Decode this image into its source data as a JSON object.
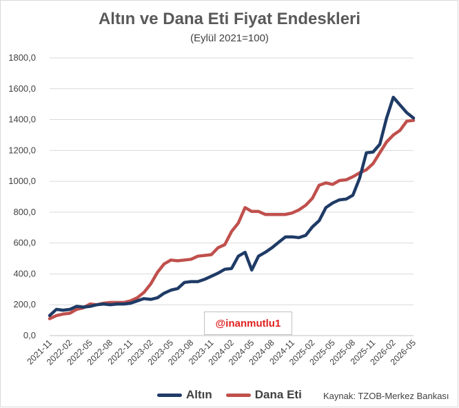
{
  "chart_data": {
    "type": "line",
    "title": "Altın ve Dana Eti Fiyat Endeskleri",
    "subtitle": "(Eylül 2021=100)",
    "ylim": [
      0,
      1800
    ],
    "yticks": [
      "0,0",
      "200,0",
      "400,0",
      "600,0",
      "800,0",
      "1000,0",
      "1200,0",
      "1400,0",
      "1600,0",
      "1800,0"
    ],
    "x": [
      "2021-11",
      "2021-12",
      "2022-01",
      "2022-02",
      "2022-03",
      "2022-04",
      "2022-05",
      "2022-06",
      "2022-07",
      "2022-08",
      "2022-09",
      "2022-10",
      "2022-11",
      "2022-12",
      "2023-01",
      "2023-02",
      "2023-03",
      "2023-04",
      "2023-05",
      "2023-06",
      "2023-07",
      "2023-08",
      "2023-09",
      "2023-10",
      "2023-11",
      "2023-12",
      "2024-01",
      "2024-02",
      "2024-03",
      "2024-04",
      "2024-05",
      "2024-06",
      "2024-07",
      "2024-08",
      "2024-09",
      "2024-10",
      "2024-11",
      "2024-12",
      "2025-01",
      "2025-02",
      "2025-03",
      "2025-04",
      "2025-05",
      "2025-06",
      "2025-07",
      "2025-08",
      "2025-09",
      "2025-10",
      "2025-11",
      "2025-12",
      "2026-01",
      "2026-02",
      "2026-03",
      "2026-04",
      "2026-05"
    ],
    "xticks": [
      "2021-11",
      "2022-02",
      "2022-05",
      "2022-08",
      "2022-11",
      "2023-02",
      "2023-05",
      "2023-08",
      "2023-11",
      "2024-02",
      "2024-05",
      "2024-08",
      "2024-11",
      "2025-02",
      "2025-05",
      "2025-08",
      "2025-11",
      "2026-02",
      "2026-05"
    ],
    "grid": true,
    "legend": "bottom",
    "series": [
      {
        "name": "Altın",
        "color": "#1f3b66",
        "values": [
          130,
          170,
          165,
          170,
          190,
          185,
          190,
          200,
          205,
          200,
          205,
          205,
          210,
          225,
          240,
          235,
          245,
          275,
          295,
          305,
          345,
          350,
          350,
          365,
          385,
          405,
          430,
          435,
          515,
          540,
          425,
          515,
          540,
          570,
          605,
          640,
          640,
          635,
          650,
          705,
          745,
          830,
          860,
          880,
          885,
          910,
          1020,
          1185,
          1190,
          1240,
          1410,
          1545,
          1495,
          1445,
          1410
        ]
      },
      {
        "name": "Dana Eti",
        "color": "#c0504d",
        "values": [
          110,
          130,
          140,
          145,
          170,
          180,
          205,
          200,
          210,
          215,
          215,
          215,
          225,
          245,
          280,
          335,
          410,
          465,
          490,
          485,
          490,
          495,
          515,
          520,
          525,
          570,
          590,
          675,
          730,
          830,
          805,
          805,
          785,
          785,
          785,
          785,
          795,
          815,
          845,
          890,
          975,
          990,
          980,
          1005,
          1010,
          1030,
          1055,
          1075,
          1115,
          1185,
          1255,
          1300,
          1330,
          1390,
          1395
        ]
      }
    ]
  },
  "watermark": "@inanmutlu1",
  "source": "Kaynak: TZOB-Merkez Bankası"
}
